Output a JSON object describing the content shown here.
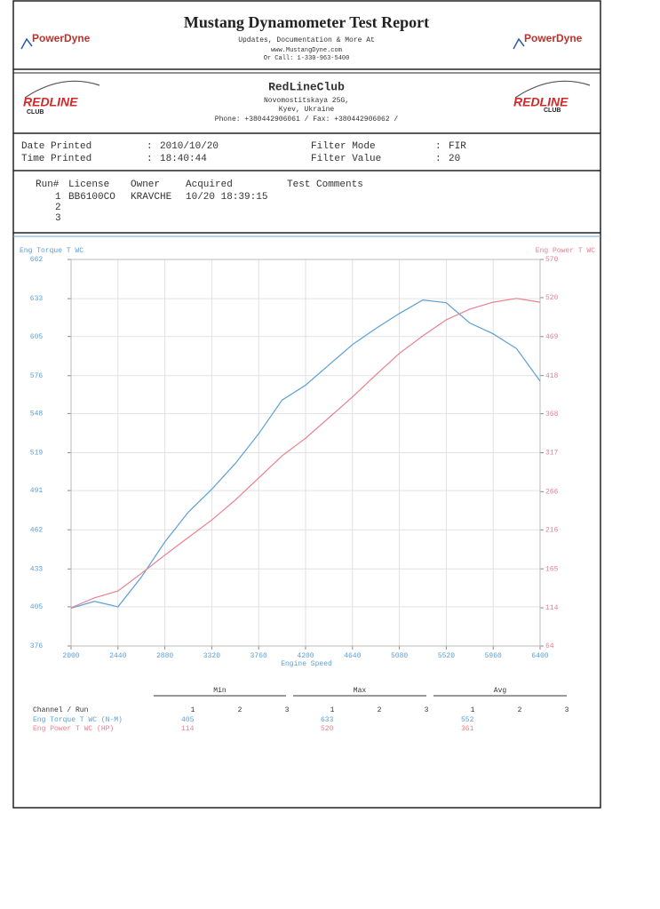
{
  "header": {
    "title": "Mustang Dynamometer Test Report",
    "subtitle": "Updates, Documentation & More At",
    "url": "www.MustangDyne.com",
    "phone": "Or Call: 1-330-963-5400",
    "logo": "PowerDyne"
  },
  "shop": {
    "name": "RedLineClub",
    "address": [
      "Novomostitskaya 25G,",
      "Kyev, Ukraine"
    ],
    "contact": "Phone: +380442906061 /    Fax: +380442906062 /",
    "logo": "REDLINE",
    "logo_sub": "CLUB"
  },
  "info": {
    "separator": ":",
    "left": [
      {
        "label": "Date Printed",
        "value": "2010/10/20"
      },
      {
        "label": "Time Printed",
        "value": "18:40:44"
      }
    ],
    "right": [
      {
        "label": "Filter Mode",
        "value": "FIR"
      },
      {
        "label": "Filter Value",
        "value": "20"
      }
    ]
  },
  "runs": {
    "headers": [
      "Run#",
      "License",
      "Owner",
      "Acquired",
      "Test Comments"
    ],
    "rows": [
      [
        "1",
        "BB6100CO",
        "KRAVCHE",
        "10/20 18:39:15"
      ],
      [
        "2"
      ],
      [
        "3"
      ]
    ]
  },
  "chart_data": {
    "type": "line",
    "xlabel": "Engine Speed",
    "ylabel": "Eng Torque T WC",
    "y2label": "Eng Power T WC",
    "x": [
      2000,
      2220,
      2440,
      2660,
      2880,
      3100,
      3320,
      3540,
      3760,
      3980,
      4200,
      4420,
      4640,
      4860,
      5080,
      5300,
      5520,
      5740,
      5960,
      6180,
      6400
    ],
    "xlim": [
      2000,
      6400
    ],
    "xticks": [
      2000,
      2440,
      2880,
      3320,
      3760,
      4200,
      4640,
      5080,
      5520,
      5960,
      6400
    ],
    "ylim": [
      376,
      662
    ],
    "yticks": [
      376,
      405,
      433,
      462,
      491,
      519,
      548,
      576,
      605,
      633,
      662
    ],
    "y2lim": [
      64,
      570
    ],
    "y2ticks": [
      64,
      114,
      165,
      216,
      266,
      317,
      368,
      418,
      469,
      520,
      570
    ],
    "grid": true,
    "series": [
      {
        "name": "Eng Torque T WC",
        "color": "#5b9fd6",
        "axis": "y",
        "values": [
          404,
          409,
          405,
          427,
          453,
          475,
          492,
          511,
          533,
          558,
          569,
          584,
          599,
          611,
          622,
          632,
          630,
          615,
          607,
          596,
          572
        ]
      },
      {
        "name": "Eng Power T WC",
        "color": "#e8808f",
        "axis": "y2",
        "values": [
          114,
          127,
          136,
          159,
          183,
          206,
          229,
          255,
          284,
          313,
          336,
          363,
          390,
          419,
          447,
          470,
          491,
          505,
          514,
          519,
          514
        ]
      }
    ]
  },
  "stats": {
    "groups": [
      "Min",
      "Max",
      "Avg"
    ],
    "channel_label": "Channel / Run",
    "run_numbers": [
      "1",
      "2",
      "3"
    ],
    "rows": [
      {
        "name": "Eng Torque T WC (N-M)",
        "values": [
          405,
          633,
          552
        ]
      },
      {
        "name": "Eng Power T WC (HP)",
        "values": [
          114,
          520,
          361
        ]
      }
    ]
  }
}
